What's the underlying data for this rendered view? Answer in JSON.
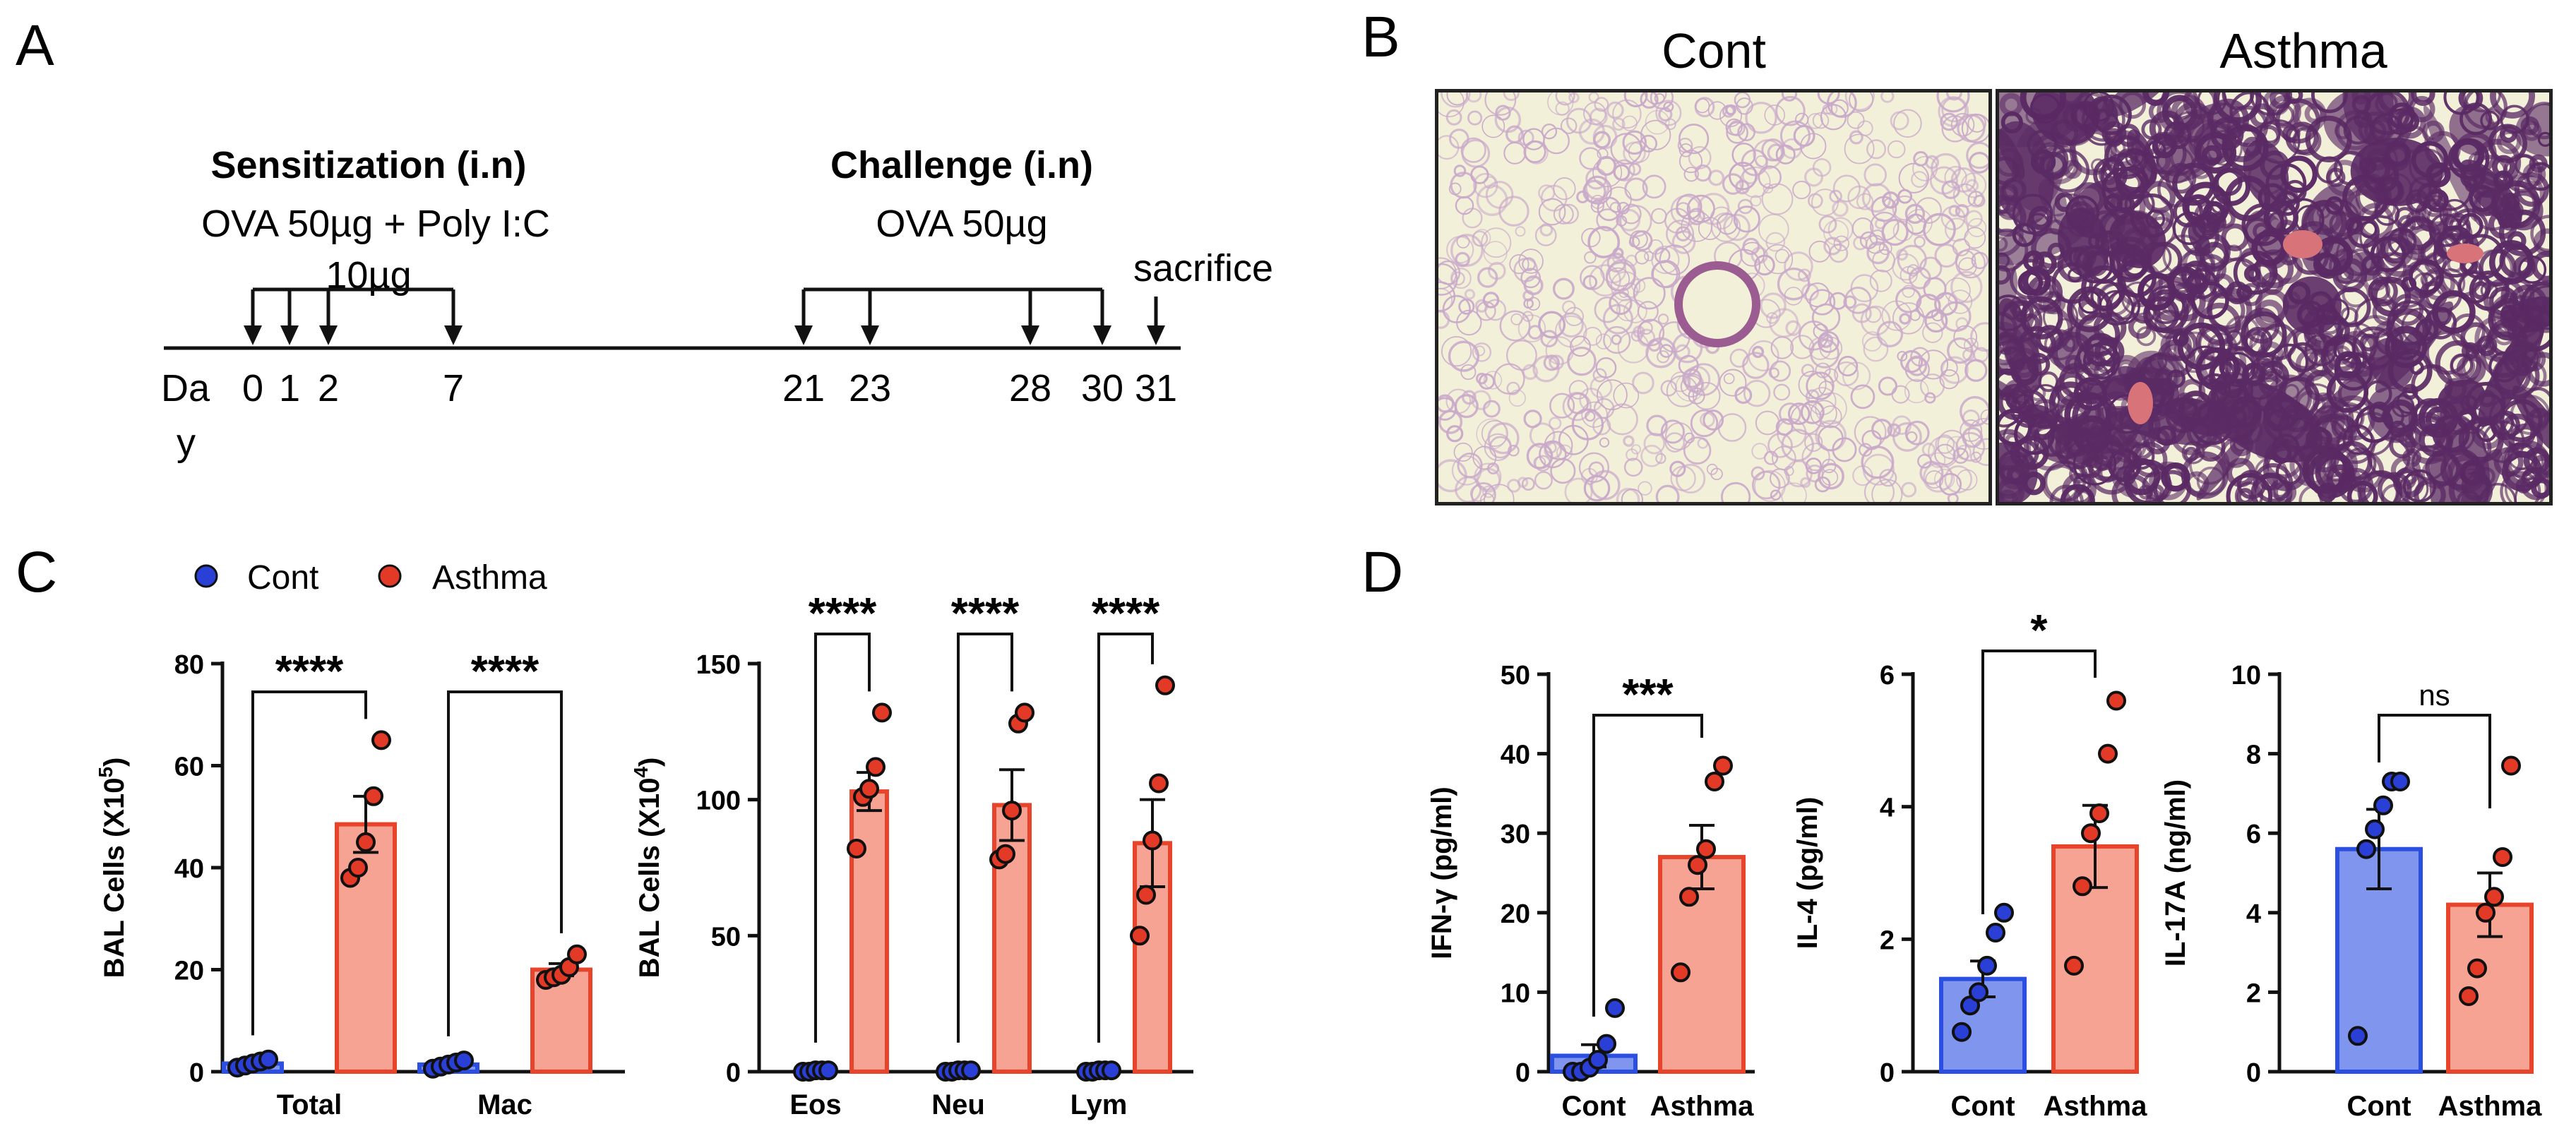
{
  "panel_labels": {
    "a": "A",
    "b": "B",
    "c": "C",
    "d": "D"
  },
  "timeline": {
    "sensitization_title": "Sensitization (i.n)",
    "sensitization_dose_line1": "OVA 50µg + Poly I:C",
    "sensitization_dose_line2": "10µg",
    "challenge_title": "Challenge (i.n)",
    "challenge_dose": "OVA 50µg",
    "sacrifice_label": "sacrifice",
    "day_label_line1": "Da",
    "day_label_line2": "y",
    "day_ticks": [
      {
        "label": "0",
        "day": 0
      },
      {
        "label": "1",
        "day": 1
      },
      {
        "label": "2",
        "day": 2
      },
      {
        "label": "7",
        "day": 7
      },
      {
        "label": "21",
        "day": 21
      },
      {
        "label": "23",
        "day": 23
      },
      {
        "label": "28",
        "day": 28
      },
      {
        "label": "30",
        "day": 30
      },
      {
        "label": "31",
        "day": 31
      }
    ],
    "sensitization_days": [
      0,
      1,
      2,
      7
    ],
    "challenge_days": [
      21,
      23,
      28,
      30
    ],
    "sacrifice_day": 31
  },
  "histology": {
    "cont_title": "Cont",
    "asthma_title": "Asthma",
    "cont_tissue_color": "#c9a9c9",
    "asthma_tissue_color": "#5a2a64",
    "background_color": "#f3f0da"
  },
  "legend": {
    "cont": "Cont",
    "asthma": "Asthma"
  },
  "colors": {
    "cont_dot": "#2a3fd6",
    "asthma_dot": "#e23a26",
    "asthma_bar_fill": "#f7a394",
    "asthma_bar_edge": "#e8442c",
    "cont_bar_fill": "#7f95ee",
    "cont_bar_edge": "#2b4fe0",
    "axis": "#111111"
  },
  "chart_data": [
    {
      "id": "c1",
      "type": "bar",
      "ylabel": "BAL Cells (X10",
      "ylabel_sup": "5",
      "ylabel_end": ")",
      "ylim": [
        0,
        80
      ],
      "yticks": [
        "0",
        "20",
        "40",
        "60",
        "80"
      ],
      "categories": [
        "Total",
        "Mac"
      ],
      "series": [
        {
          "name": "Cont",
          "values": [
            1.6,
            1.4
          ],
          "sem": [
            0.4,
            0.3
          ],
          "points": [
            [
              0.8,
              1.2,
              1.6,
              2.0,
              2.4
            ],
            [
              0.6,
              1.0,
              1.4,
              1.8,
              2.2
            ]
          ]
        },
        {
          "name": "Asthma",
          "values": [
            48.5,
            20.0
          ],
          "sem": [
            5.5,
            1.2
          ],
          "points": [
            [
              38,
              40,
              45,
              54,
              65
            ],
            [
              18,
              18.5,
              19,
              20.5,
              23
            ]
          ]
        }
      ],
      "significance": [
        "****",
        "****"
      ]
    },
    {
      "id": "c2",
      "type": "bar",
      "ylabel": "BAL Cells (X10",
      "ylabel_sup": "4",
      "ylabel_end": ")",
      "ylim": [
        0,
        150
      ],
      "yticks": [
        "0",
        "50",
        "100",
        "150"
      ],
      "categories": [
        "Eos",
        "Neu",
        "Lym"
      ],
      "series": [
        {
          "name": "Cont",
          "values": [
            0.3,
            0.3,
            0.3
          ],
          "sem": [
            0.1,
            0.1,
            0.1
          ],
          "points": [
            [
              0,
              0,
              0.5,
              0.5,
              0.5
            ],
            [
              0,
              0,
              0.5,
              0.5,
              0.5
            ],
            [
              0,
              0,
              0.5,
              0.5,
              0.5
            ]
          ]
        },
        {
          "name": "Asthma",
          "values": [
            103,
            98,
            84
          ],
          "sem": [
            7,
            13,
            16
          ],
          "points": [
            [
              82,
              101,
              104,
              112,
              132
            ],
            [
              78,
              80,
              96,
              128,
              132
            ],
            [
              50,
              65,
              85,
              106,
              142
            ]
          ]
        }
      ],
      "significance": [
        "****",
        "****",
        "****"
      ]
    },
    {
      "id": "d1",
      "type": "bar",
      "ylabel": "IFN-γ (pg/ml)",
      "ylim": [
        0,
        50
      ],
      "yticks": [
        "0",
        "10",
        "20",
        "30",
        "40",
        "50"
      ],
      "categories": [
        "Cont",
        "Asthma"
      ],
      "values": [
        2.0,
        27.0
      ],
      "sem": [
        1.4,
        4.0
      ],
      "points": [
        [
          0,
          0,
          0.5,
          1.5,
          3.5,
          8
        ],
        [
          12.5,
          22,
          26,
          28,
          36.5,
          38.5
        ]
      ],
      "significance": "***"
    },
    {
      "id": "d2",
      "type": "bar",
      "ylabel": "IL-4 (pg/ml)",
      "ylim": [
        0,
        6
      ],
      "yticks": [
        "0",
        "2",
        "4",
        "6"
      ],
      "categories": [
        "Cont",
        "Asthma"
      ],
      "values": [
        1.4,
        3.4
      ],
      "sem": [
        0.27,
        0.62
      ],
      "points": [
        [
          0.6,
          1.0,
          1.2,
          1.6,
          2.1,
          2.4
        ],
        [
          1.6,
          2.8,
          3.6,
          3.9,
          4.8,
          5.6
        ]
      ],
      "significance": "*"
    },
    {
      "id": "d3",
      "type": "bar",
      "ylabel": "IL-17A (ng/ml)",
      "ylim": [
        0,
        10
      ],
      "yticks": [
        "0",
        "2",
        "4",
        "6",
        "8",
        "10"
      ],
      "categories": [
        "Cont",
        "Asthma"
      ],
      "values": [
        5.6,
        4.2
      ],
      "sem": [
        1.0,
        0.8
      ],
      "points": [
        [
          0.9,
          5.6,
          6.1,
          6.7,
          7.3,
          7.3
        ],
        [
          1.9,
          2.6,
          4.0,
          4.4,
          5.4,
          7.7
        ]
      ],
      "significance": "ns"
    }
  ]
}
